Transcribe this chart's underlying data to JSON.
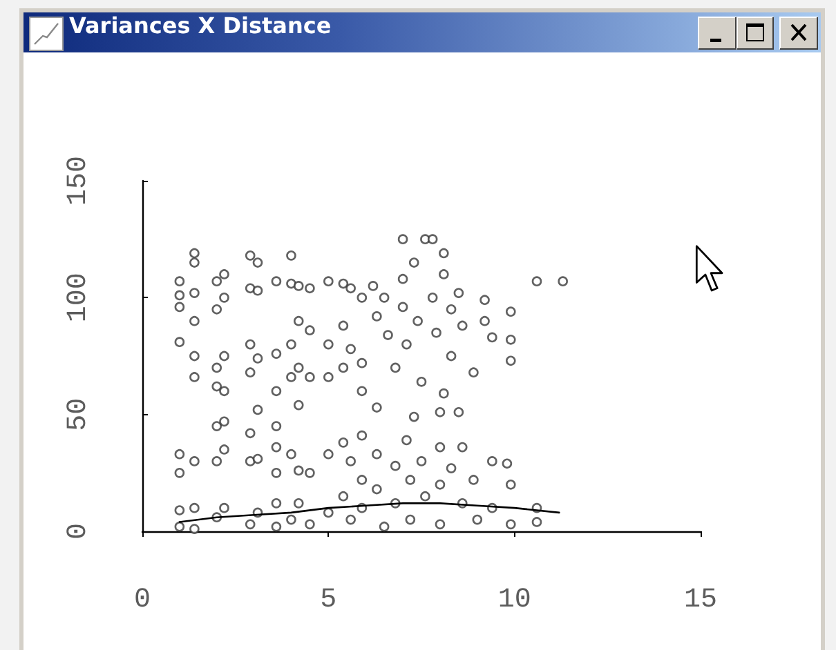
{
  "chart_data": {
    "type": "scatter",
    "title": "Variances X Distance",
    "xlim": [
      0,
      15
    ],
    "ylim": [
      0,
      150
    ],
    "xticks": [
      0,
      5,
      10,
      15
    ],
    "yticks": [
      0,
      50,
      100,
      150
    ],
    "marker": "circle",
    "series": [
      {
        "color": "#3a3a3a",
        "x": [
          1,
          1,
          1,
          1,
          1,
          1,
          1,
          1,
          1.4,
          1.4,
          1.4,
          1.4,
          1.4,
          1.4,
          1.4,
          1.4,
          1.4,
          2,
          2,
          2,
          2,
          2,
          2,
          2,
          2.2,
          2.2,
          2.2,
          2.2,
          2.2,
          2.2,
          2.2,
          2.9,
          2.9,
          2.9,
          2.9,
          2.9,
          2.9,
          2.9,
          3.1,
          3.1,
          3.1,
          3.1,
          3.1,
          3.1,
          3.6,
          3.6,
          3.6,
          3.6,
          3.6,
          3.6,
          3.6,
          3.6,
          4,
          4,
          4,
          4,
          4,
          4,
          4.2,
          4.2,
          4.2,
          4.2,
          4.2,
          4.2,
          4.5,
          4.5,
          4.5,
          4.5,
          4.5,
          5,
          5,
          5,
          5,
          5,
          5.4,
          5.4,
          5.4,
          5.4,
          5.4,
          5.6,
          5.6,
          5.6,
          5.6,
          5.9,
          5.9,
          5.9,
          5.9,
          5.9,
          5.9,
          6.2,
          6.3,
          6.3,
          6.3,
          6.3,
          6.5,
          6.5,
          6.6,
          6.8,
          6.8,
          6.8,
          7,
          7,
          7,
          7.1,
          7.1,
          7.2,
          7.2,
          7.3,
          7.3,
          7.4,
          7.5,
          7.5,
          7.6,
          7.6,
          7.8,
          7.8,
          7.9,
          8,
          8,
          8,
          8,
          8.1,
          8.1,
          8.1,
          8.3,
          8.3,
          8.3,
          8.5,
          8.5,
          8.6,
          8.6,
          8.6,
          8.9,
          8.9,
          9,
          9.2,
          9.2,
          9.4,
          9.4,
          9.4,
          9.8,
          9.9,
          9.9,
          9.9,
          9.9,
          9.9,
          10.6,
          10.6,
          10.6,
          11.3
        ],
        "values": [
          107,
          101,
          96,
          81,
          33,
          25,
          9,
          2,
          119,
          115,
          102,
          90,
          75,
          66,
          30,
          10,
          1,
          107,
          95,
          70,
          62,
          45,
          30,
          6,
          110,
          100,
          75,
          60,
          47,
          35,
          10,
          118,
          104,
          80,
          68,
          42,
          30,
          3,
          115,
          103,
          74,
          52,
          31,
          8,
          107,
          76,
          60,
          45,
          36,
          25,
          12,
          2,
          118,
          106,
          80,
          66,
          33,
          5,
          105,
          90,
          70,
          54,
          26,
          12,
          104,
          86,
          66,
          25,
          3,
          107,
          80,
          66,
          33,
          8,
          106,
          88,
          70,
          38,
          15,
          104,
          78,
          30,
          5,
          100,
          72,
          60,
          41,
          22,
          10,
          105,
          92,
          53,
          33,
          18,
          100,
          2,
          84,
          70,
          28,
          12,
          125,
          108,
          96,
          80,
          39,
          22,
          5,
          115,
          49,
          90,
          64,
          30,
          125,
          15,
          125,
          100,
          85,
          51,
          36,
          20,
          3,
          119,
          110,
          59,
          95,
          75,
          27,
          102,
          51,
          88,
          36,
          12,
          68,
          22,
          5,
          99,
          90,
          83,
          30,
          10,
          29,
          94,
          82,
          73,
          20,
          3,
          107,
          10,
          4,
          107
        ]
      },
      {
        "type": "line",
        "color": "#000000",
        "marker": "none",
        "x": [
          1,
          2,
          3,
          4,
          5,
          6,
          7,
          8,
          9,
          10,
          11.2
        ],
        "values": [
          4,
          6,
          7,
          8,
          10,
          11,
          12,
          12,
          11,
          10,
          8
        ]
      }
    ]
  }
}
